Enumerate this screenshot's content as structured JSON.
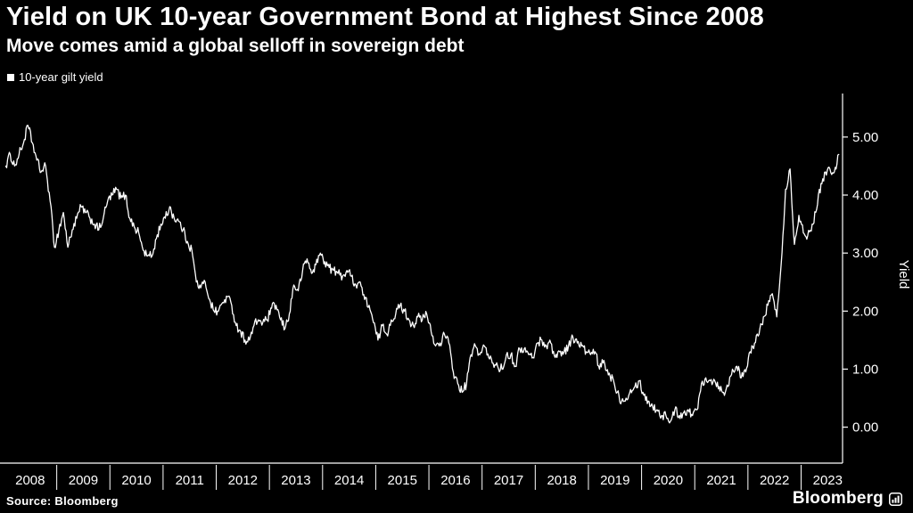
{
  "header": {
    "title": "Yield on UK 10-year Government Bond at Highest Since 2008",
    "subtitle": "Move comes amid a global selloff in sovereign debt"
  },
  "legend": {
    "label": "10-year gilt yield"
  },
  "source": {
    "label": "Source:  Bloomberg"
  },
  "branding": {
    "logo_text": "Bloomberg"
  },
  "chart_data": {
    "type": "line",
    "title": "Yield on UK 10-year Government Bond at Highest Since 2008",
    "subtitle": "Move comes amid a global selloff in sovereign debt",
    "legend_position": "top-left",
    "grid": false,
    "background_color": "#000000",
    "line_color": "#ffffff",
    "y_axis": {
      "title": "Yield",
      "side": "right",
      "ticks": [
        {
          "value": 5,
          "label": "5.00"
        },
        {
          "value": 4,
          "label": "4.00"
        },
        {
          "value": 3,
          "label": "3.00"
        },
        {
          "value": 2,
          "label": "2.00"
        },
        {
          "value": 1,
          "label": "1.00"
        },
        {
          "value": 0,
          "label": "0.00"
        }
      ],
      "ylim": [
        0,
        5.2
      ]
    },
    "x_axis": {
      "ticks": [
        {
          "year": 2008,
          "label": "2008"
        },
        {
          "year": 2009,
          "label": "2009"
        },
        {
          "year": 2010,
          "label": "2010"
        },
        {
          "year": 2011,
          "label": "2011"
        },
        {
          "year": 2012,
          "label": "2012"
        },
        {
          "year": 2013,
          "label": "2013"
        },
        {
          "year": 2014,
          "label": "2014"
        },
        {
          "year": 2015,
          "label": "2015"
        },
        {
          "year": 2016,
          "label": "2016"
        },
        {
          "year": 2017,
          "label": "2017"
        },
        {
          "year": 2018,
          "label": "2018"
        },
        {
          "year": 2019,
          "label": "2019"
        },
        {
          "year": 2020,
          "label": "2020"
        },
        {
          "year": 2021,
          "label": "2021"
        },
        {
          "year": 2022,
          "label": "2022"
        },
        {
          "year": 2023,
          "label": "2023"
        }
      ],
      "xlim": [
        2008.0,
        2023.78
      ]
    },
    "series": [
      {
        "name": "10-year gilt yield",
        "freq": "monthly",
        "start_year": 2008,
        "start_month": 1,
        "values": [
          4.5,
          4.7,
          4.5,
          4.7,
          4.9,
          5.2,
          4.9,
          4.6,
          4.4,
          4.5,
          3.9,
          3.1,
          3.4,
          3.7,
          3.1,
          3.4,
          3.6,
          3.8,
          3.7,
          3.6,
          3.5,
          3.4,
          3.6,
          3.9,
          4.0,
          4.1,
          3.95,
          4.0,
          3.6,
          3.45,
          3.35,
          3.05,
          2.95,
          2.95,
          3.25,
          3.5,
          3.6,
          3.8,
          3.6,
          3.55,
          3.4,
          3.2,
          3.05,
          2.5,
          2.4,
          2.5,
          2.2,
          2.0,
          2.0,
          2.15,
          2.25,
          2.1,
          1.75,
          1.65,
          1.5,
          1.5,
          1.75,
          1.85,
          1.8,
          1.85,
          2.05,
          2.1,
          1.85,
          1.7,
          1.95,
          2.45,
          2.35,
          2.7,
          2.9,
          2.65,
          2.8,
          3.0,
          2.85,
          2.75,
          2.7,
          2.65,
          2.6,
          2.7,
          2.6,
          2.45,
          2.5,
          2.2,
          2.1,
          1.8,
          1.5,
          1.75,
          1.6,
          1.85,
          1.95,
          2.1,
          2.0,
          1.85,
          1.75,
          1.9,
          1.85,
          1.95,
          1.65,
          1.4,
          1.45,
          1.6,
          1.45,
          0.95,
          0.75,
          0.6,
          0.75,
          1.25,
          1.4,
          1.25,
          1.4,
          1.2,
          1.1,
          1.05,
          1.0,
          1.25,
          1.25,
          1.05,
          1.35,
          1.35,
          1.25,
          1.2,
          1.45,
          1.5,
          1.4,
          1.45,
          1.2,
          1.3,
          1.3,
          1.4,
          1.55,
          1.45,
          1.4,
          1.3,
          1.25,
          1.3,
          1.0,
          1.15,
          0.9,
          0.85,
          0.6,
          0.45,
          0.5,
          0.65,
          0.7,
          0.8,
          0.55,
          0.45,
          0.35,
          0.3,
          0.2,
          0.2,
          0.1,
          0.3,
          0.2,
          0.25,
          0.3,
          0.2,
          0.3,
          0.75,
          0.85,
          0.8,
          0.8,
          0.7,
          0.6,
          0.7,
          1.0,
          1.05,
          0.85,
          0.95,
          1.3,
          1.45,
          1.6,
          1.9,
          2.1,
          2.3,
          1.9,
          2.8,
          4.1,
          4.45,
          3.15,
          3.65,
          3.35,
          3.3,
          3.5,
          3.75,
          4.2,
          4.4,
          4.45,
          4.4,
          4.7
        ]
      }
    ]
  }
}
